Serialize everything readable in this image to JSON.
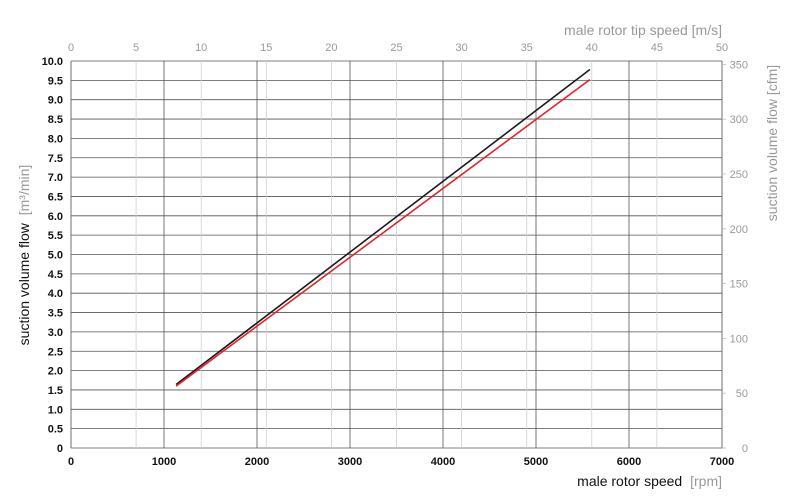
{
  "chart_data": {
    "type": "line",
    "x_bottom": {
      "label": "male rotor speed",
      "unit": "[rpm]",
      "range": [
        0,
        7000
      ],
      "ticks": [
        0,
        1000,
        2000,
        3000,
        4000,
        5000,
        6000,
        7000
      ]
    },
    "x_top": {
      "label": "male rotor tip speed [m/s]",
      "range": [
        0,
        50
      ],
      "ticks": [
        0,
        5,
        10,
        15,
        20,
        25,
        30,
        35,
        40,
        45,
        50
      ]
    },
    "y_left": {
      "label": "suction volume flow",
      "unit": "[m³/min]",
      "range": [
        0,
        10
      ],
      "ticks": [
        "0",
        "0.5",
        "1.0",
        "1.5",
        "2.0",
        "2.5",
        "3.0",
        "3.5",
        "4.0",
        "4.5",
        "5.0",
        "5.5",
        "6.0",
        "6.5",
        "7.0",
        "7.5",
        "8.0",
        "8.5",
        "9.0",
        "9.5",
        "10.0"
      ]
    },
    "y_right": {
      "label": "suction volume flow [cfm]",
      "range": [
        0,
        353.1
      ],
      "ticks": [
        0,
        50,
        100,
        150,
        200,
        250,
        300,
        350
      ]
    },
    "grid": true,
    "series": [
      {
        "color": "#1a1a1a",
        "x": [
          1130,
          5580
        ],
        "y": [
          1.64,
          9.78
        ]
      },
      {
        "color": "#e3242b",
        "x": [
          1130,
          5580
        ],
        "y": [
          1.6,
          9.52
        ]
      }
    ]
  }
}
